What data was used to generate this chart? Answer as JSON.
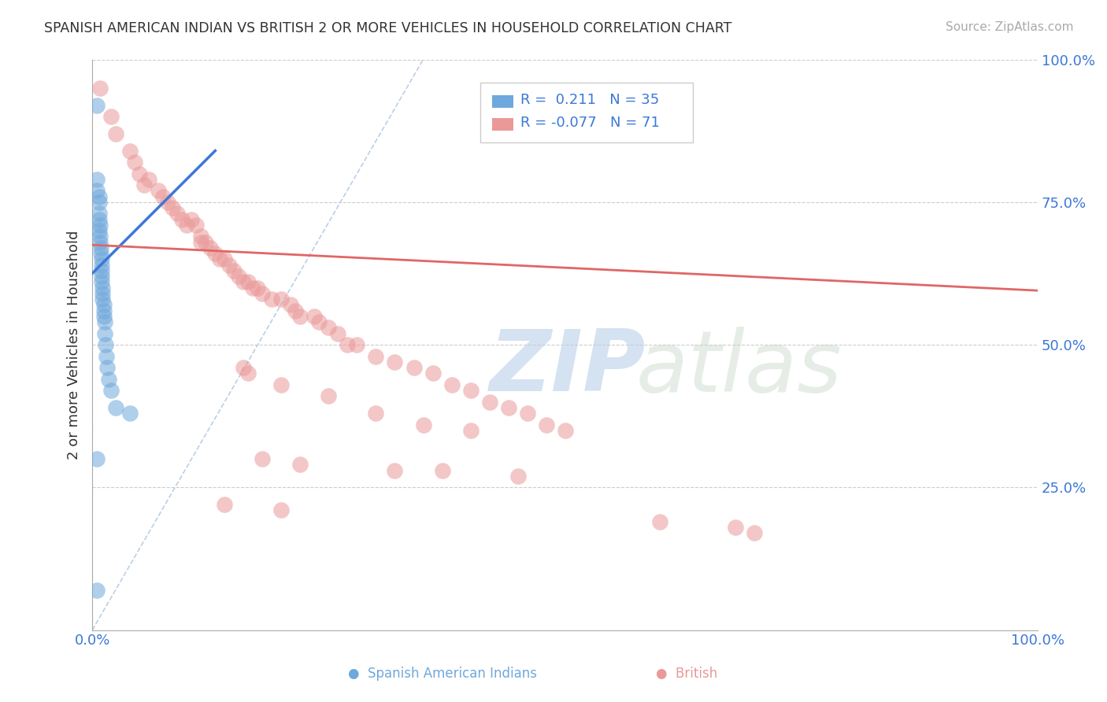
{
  "title": "SPANISH AMERICAN INDIAN VS BRITISH 2 OR MORE VEHICLES IN HOUSEHOLD CORRELATION CHART",
  "source": "Source: ZipAtlas.com",
  "ylabel": "2 or more Vehicles in Household",
  "xlim": [
    0.0,
    1.0
  ],
  "ylim": [
    0.0,
    1.0
  ],
  "grid_color": "#cccccc",
  "legend_R1": "0.211",
  "legend_N1": "35",
  "legend_R2": "-0.077",
  "legend_N2": "71",
  "blue_color": "#6fa8dc",
  "pink_color": "#ea9999",
  "blue_line_color": "#3c78d8",
  "pink_line_color": "#e06666",
  "blue_scatter": [
    [
      0.005,
      0.92
    ],
    [
      0.005,
      0.79
    ],
    [
      0.005,
      0.77
    ],
    [
      0.007,
      0.76
    ],
    [
      0.007,
      0.75
    ],
    [
      0.007,
      0.73
    ],
    [
      0.007,
      0.72
    ],
    [
      0.007,
      0.7
    ],
    [
      0.008,
      0.71
    ],
    [
      0.008,
      0.69
    ],
    [
      0.008,
      0.68
    ],
    [
      0.009,
      0.67
    ],
    [
      0.009,
      0.66
    ],
    [
      0.01,
      0.65
    ],
    [
      0.01,
      0.64
    ],
    [
      0.01,
      0.63
    ],
    [
      0.01,
      0.62
    ],
    [
      0.01,
      0.61
    ],
    [
      0.011,
      0.6
    ],
    [
      0.011,
      0.59
    ],
    [
      0.011,
      0.58
    ],
    [
      0.012,
      0.57
    ],
    [
      0.012,
      0.56
    ],
    [
      0.012,
      0.55
    ],
    [
      0.013,
      0.54
    ],
    [
      0.013,
      0.52
    ],
    [
      0.014,
      0.5
    ],
    [
      0.015,
      0.48
    ],
    [
      0.016,
      0.46
    ],
    [
      0.017,
      0.44
    ],
    [
      0.02,
      0.42
    ],
    [
      0.025,
      0.39
    ],
    [
      0.04,
      0.38
    ],
    [
      0.005,
      0.3
    ],
    [
      0.005,
      0.07
    ]
  ],
  "pink_scatter": [
    [
      0.008,
      0.95
    ],
    [
      0.02,
      0.9
    ],
    [
      0.025,
      0.87
    ],
    [
      0.04,
      0.84
    ],
    [
      0.045,
      0.82
    ],
    [
      0.05,
      0.8
    ],
    [
      0.055,
      0.78
    ],
    [
      0.06,
      0.79
    ],
    [
      0.07,
      0.77
    ],
    [
      0.075,
      0.76
    ],
    [
      0.08,
      0.75
    ],
    [
      0.085,
      0.74
    ],
    [
      0.09,
      0.73
    ],
    [
      0.095,
      0.72
    ],
    [
      0.1,
      0.71
    ],
    [
      0.105,
      0.72
    ],
    [
      0.11,
      0.71
    ],
    [
      0.115,
      0.69
    ],
    [
      0.115,
      0.68
    ],
    [
      0.12,
      0.68
    ],
    [
      0.125,
      0.67
    ],
    [
      0.13,
      0.66
    ],
    [
      0.135,
      0.65
    ],
    [
      0.14,
      0.65
    ],
    [
      0.145,
      0.64
    ],
    [
      0.15,
      0.63
    ],
    [
      0.155,
      0.62
    ],
    [
      0.16,
      0.61
    ],
    [
      0.165,
      0.61
    ],
    [
      0.17,
      0.6
    ],
    [
      0.175,
      0.6
    ],
    [
      0.18,
      0.59
    ],
    [
      0.19,
      0.58
    ],
    [
      0.2,
      0.58
    ],
    [
      0.21,
      0.57
    ],
    [
      0.215,
      0.56
    ],
    [
      0.22,
      0.55
    ],
    [
      0.235,
      0.55
    ],
    [
      0.24,
      0.54
    ],
    [
      0.25,
      0.53
    ],
    [
      0.26,
      0.52
    ],
    [
      0.27,
      0.5
    ],
    [
      0.28,
      0.5
    ],
    [
      0.3,
      0.48
    ],
    [
      0.32,
      0.47
    ],
    [
      0.34,
      0.46
    ],
    [
      0.36,
      0.45
    ],
    [
      0.38,
      0.43
    ],
    [
      0.4,
      0.42
    ],
    [
      0.42,
      0.4
    ],
    [
      0.44,
      0.39
    ],
    [
      0.46,
      0.38
    ],
    [
      0.48,
      0.36
    ],
    [
      0.5,
      0.35
    ],
    [
      0.16,
      0.46
    ],
    [
      0.165,
      0.45
    ],
    [
      0.2,
      0.43
    ],
    [
      0.25,
      0.41
    ],
    [
      0.3,
      0.38
    ],
    [
      0.35,
      0.36
    ],
    [
      0.4,
      0.35
    ],
    [
      0.18,
      0.3
    ],
    [
      0.22,
      0.29
    ],
    [
      0.32,
      0.28
    ],
    [
      0.37,
      0.28
    ],
    [
      0.45,
      0.27
    ],
    [
      0.14,
      0.22
    ],
    [
      0.2,
      0.21
    ],
    [
      0.6,
      0.19
    ],
    [
      0.68,
      0.18
    ],
    [
      0.7,
      0.17
    ]
  ],
  "blue_line": [
    [
      0.0,
      0.625
    ],
    [
      0.13,
      0.84
    ]
  ],
  "pink_line": [
    [
      0.0,
      0.675
    ],
    [
      1.0,
      0.595
    ]
  ],
  "ref_line": [
    [
      0.0,
      0.0
    ],
    [
      0.35,
      1.0
    ]
  ]
}
